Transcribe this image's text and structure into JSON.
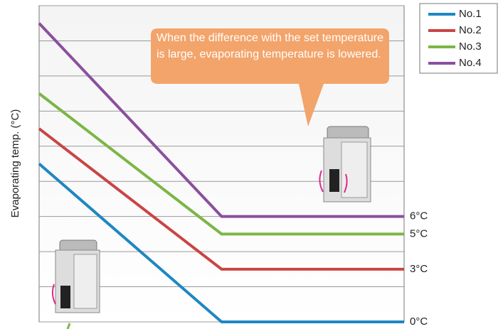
{
  "chart_data": {
    "type": "line",
    "y_label": "Evaporating temp. (°C)",
    "annotation": "When the difference with the set temperature is large, evaporating temperature is lowered.",
    "x": [
      0,
      50,
      100
    ],
    "xlim": [
      0,
      100
    ],
    "ylim": [
      0,
      18
    ],
    "yticks": [
      0,
      2,
      4,
      6,
      8,
      10,
      12,
      14,
      16,
      18
    ],
    "grid": true,
    "legend": "top-right",
    "series": [
      {
        "name": "No.1",
        "color": "#1f87c2",
        "values": [
          9,
          0,
          0
        ],
        "value_labels": [
          null,
          null,
          "0°C"
        ]
      },
      {
        "name": "No.2",
        "color": "#c94545",
        "values": [
          11,
          3,
          3
        ],
        "value_labels": [
          null,
          null,
          "3°C"
        ]
      },
      {
        "name": "No.3",
        "color": "#7cb646",
        "values": [
          13,
          5,
          5
        ],
        "value_labels": [
          null,
          null,
          "5°C"
        ]
      },
      {
        "name": "No.4",
        "color": "#8b4f9e",
        "values": [
          17,
          6,
          6
        ],
        "value_labels": [
          null,
          null,
          "6°C"
        ]
      }
    ]
  }
}
